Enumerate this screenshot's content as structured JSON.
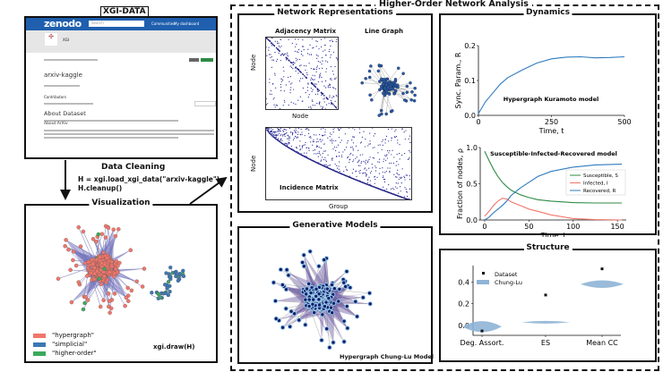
{
  "source": {
    "label": "XGI-DATA",
    "zenodo": {
      "logo": "zenodo",
      "search_placeholder": "Search",
      "nav": [
        "Communities",
        "My dashboard"
      ],
      "community": "XGI",
      "dataset_title": "arxiv-kaggle",
      "contributors_heading": "Contributors",
      "about_dataset": "About Dataset",
      "about_arxiv": "About ArXiv",
      "brand_color": "#1f5fae"
    }
  },
  "cleaning": {
    "title": "Data Cleaning",
    "code": [
      "H = xgi.load_xgi_data(\"arxiv-kaggle\")",
      "H.cleanup()"
    ]
  },
  "visualization": {
    "title": "Visualization",
    "legend": [
      {
        "label": "\"hypergraph\"",
        "color": "#f0766b"
      },
      {
        "label": "\"simplicial\"",
        "color": "#3a78b5"
      },
      {
        "label": "\"higher-order\"",
        "color": "#3aaa5a"
      }
    ],
    "code": "xgi.draw(H)"
  },
  "analysis": {
    "title": "Higher-Order Network Analysis"
  },
  "representations": {
    "title": "Network Representations",
    "adjacency": {
      "title": "Adjacency Matrix",
      "xlabel": "Node",
      "ylabel": "Node"
    },
    "line_graph": {
      "title": "Line Graph"
    },
    "incidence": {
      "title": "Incidence Matrix",
      "xlabel": "Group",
      "ylabel": "Node"
    }
  },
  "generative": {
    "title": "Generative Models",
    "caption": "Hypergraph Chung-Lu Model"
  },
  "dynamics": {
    "title": "Dynamics"
  },
  "structure": {
    "title": "Structure"
  },
  "chart_data": [
    {
      "type": "line",
      "annotation": "Hypergraph Kuramoto model",
      "xlabel": "Time, t",
      "ylabel": "Sync. Param., R",
      "xlim": [
        0,
        500
      ],
      "ylim": [
        0,
        0.2
      ],
      "xticks": [
        0,
        250,
        500
      ],
      "yticks": [
        0.0,
        0.1,
        0.2
      ],
      "x": [
        0,
        25,
        50,
        75,
        100,
        150,
        200,
        250,
        300,
        350,
        400,
        450,
        500
      ],
      "series": [
        {
          "values": [
            0.005,
            0.04,
            0.065,
            0.09,
            0.108,
            0.13,
            0.15,
            0.162,
            0.167,
            0.168,
            0.165,
            0.166,
            0.168
          ],
          "color": "#2f7bbf"
        }
      ]
    },
    {
      "type": "line",
      "annotation": "Susceptible-Infected-Recovered model",
      "xlabel": "Time, t",
      "ylabel": "Fraction of nodes, ρ",
      "xlim": [
        -5,
        160
      ],
      "ylim": [
        0,
        1.0
      ],
      "xticks": [
        0,
        50,
        100,
        150
      ],
      "yticks": [
        0.0,
        0.5,
        1.0
      ],
      "legend": "center-right",
      "x": [
        0,
        5,
        10,
        15,
        20,
        25,
        30,
        40,
        50,
        60,
        75,
        100,
        125,
        155
      ],
      "series": [
        {
          "name": "Susceptible, S",
          "color": "#2e8b45",
          "values": [
            0.95,
            0.82,
            0.7,
            0.6,
            0.52,
            0.46,
            0.41,
            0.35,
            0.31,
            0.28,
            0.26,
            0.24,
            0.235,
            0.235
          ]
        },
        {
          "name": "Infected, I",
          "color": "#f0766b",
          "values": [
            0.05,
            0.12,
            0.2,
            0.26,
            0.3,
            0.29,
            0.25,
            0.2,
            0.15,
            0.12,
            0.07,
            0.02,
            0.005,
            0.0
          ]
        },
        {
          "name": "Recovered, R",
          "color": "#2f7bbf",
          "values": [
            0.0,
            0.04,
            0.1,
            0.15,
            0.2,
            0.26,
            0.34,
            0.44,
            0.52,
            0.6,
            0.67,
            0.73,
            0.76,
            0.77
          ]
        }
      ]
    },
    {
      "type": "scatter",
      "categories": [
        "Deg. Assort.",
        "ES",
        "Mean CC"
      ],
      "ylim": [
        -0.09,
        0.55
      ],
      "yticks": [
        0.0,
        0.2,
        0.4
      ],
      "legend": "top-left",
      "series": [
        {
          "name": "Dataset",
          "color": "#111111",
          "values": [
            -0.05,
            0.28,
            0.52
          ]
        },
        {
          "name": "Chung-Lu",
          "color": "#8fb4d6",
          "values": [
            -0.01,
            0.03,
            0.38
          ]
        }
      ]
    }
  ]
}
